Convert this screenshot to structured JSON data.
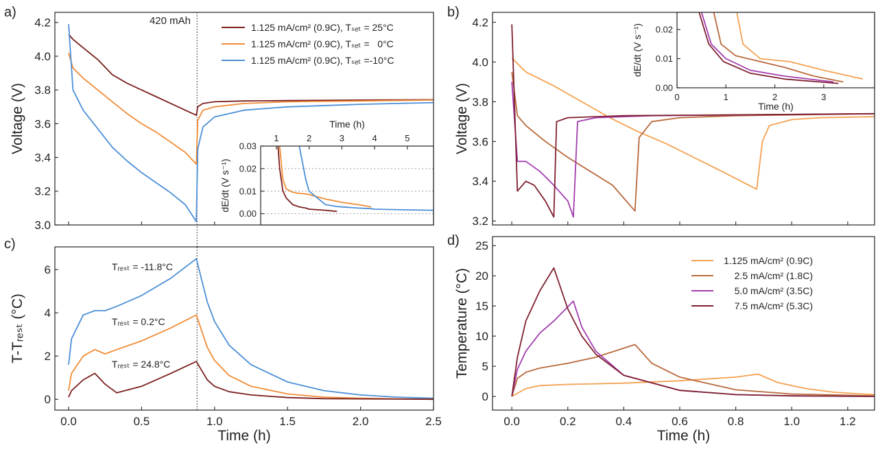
{
  "chart_data": [
    {
      "type": "line",
      "panel_label": "a)",
      "ylabel": "Voltage (V)",
      "xlim": [
        -0.094,
        2.5
      ],
      "ylim": [
        3.0,
        4.26
      ],
      "xticks": [
        0,
        0.5,
        1,
        1.5,
        2,
        2.5
      ],
      "show_xtick_labels": false,
      "yticks": [
        {
          "value": 3,
          "label": "3.0"
        },
        3.2,
        3.4,
        3.6,
        3.8,
        {
          "value": 4,
          "label": "4.0"
        },
        4.2
      ],
      "vline": 0.88,
      "annotations": [
        {
          "text": "420 mAh"
        }
      ],
      "legend": "upper right",
      "x": [
        0,
        0.03,
        0.1,
        0.2,
        0.3,
        0.4,
        0.5,
        0.6,
        0.7,
        0.8,
        0.875,
        0.885,
        0.92,
        1.0,
        1.2,
        1.5,
        2.0,
        2.5
      ],
      "series": [
        {
          "name": "1.125 mA/cm² (0.9C), Tₛₑₜ = 25°C",
          "color": "#7a1e1e",
          "values": [
            4.13,
            4.1,
            4.05,
            3.98,
            3.89,
            3.84,
            3.8,
            3.76,
            3.72,
            3.68,
            3.65,
            3.7,
            3.72,
            3.73,
            3.735,
            3.737,
            3.74,
            3.742
          ]
        },
        {
          "name": "1.125 mA/cm² (0.9C), Tₛₑₜ =   0°C",
          "color": "#f08c36",
          "values": [
            4.02,
            3.93,
            3.87,
            3.8,
            3.73,
            3.66,
            3.6,
            3.55,
            3.49,
            3.43,
            3.36,
            3.62,
            3.68,
            3.7,
            3.72,
            3.73,
            3.735,
            3.74
          ]
        },
        {
          "name": "1.125 mA/cm² (0.9C), Tₛₑₜ =-10°C",
          "color": "#4b8fd6",
          "values": [
            4.19,
            3.8,
            3.68,
            3.57,
            3.46,
            3.38,
            3.31,
            3.25,
            3.19,
            3.12,
            3.02,
            3.45,
            3.58,
            3.64,
            3.68,
            3.7,
            3.715,
            3.725
          ]
        }
      ]
    },
    {
      "type": "line",
      "xlabel": "Time (h)",
      "ylabel": "dE/dt (V s⁻¹)",
      "xaxis_position": "top",
      "grid": true,
      "xlim": [
        0.52,
        5.8
      ],
      "ylim": [
        -0.005,
        0.03
      ],
      "xticks": [
        1,
        2,
        3,
        4,
        5
      ],
      "yticks": [
        {
          "value": 0,
          "label": "0.00"
        },
        0.01,
        0.02,
        0.03
      ],
      "x": [
        1.05,
        1.1,
        1.2,
        1.3,
        1.5,
        1.7,
        1.9,
        2.0,
        2.5,
        2.85,
        3.0,
        3.5,
        3.9,
        4.0,
        5.0,
        5.8
      ],
      "series": [
        {
          "color": "#7a1e1e",
          "values": [
            0.03,
            0.02,
            0.01,
            0.007,
            0.004,
            0.003,
            0.0025,
            0.002,
            0.0015,
            0.001,
            null,
            null,
            null,
            null,
            null,
            null
          ]
        },
        {
          "color": "#f08c36",
          "values": [
            null,
            0.03,
            0.015,
            0.011,
            0.0095,
            0.009,
            0.0088,
            0.0085,
            0.0065,
            0.0055,
            0.005,
            0.004,
            0.003,
            null,
            null,
            null
          ]
        },
        {
          "color": "#4b8fd6",
          "values": [
            null,
            null,
            null,
            null,
            null,
            0.03,
            0.015,
            0.01,
            0.004,
            0.0032,
            0.003,
            0.0025,
            0.0022,
            0.002,
            0.0017,
            0.0015
          ]
        }
      ]
    },
    {
      "type": "line",
      "panel_label": "b)",
      "ylabel": "Voltage (V)",
      "xlim": [
        -0.069,
        1.296
      ],
      "ylim": [
        3.18,
        4.25
      ],
      "xticks": [
        0,
        0.2,
        0.4,
        0.6,
        0.8,
        1,
        1.2
      ],
      "show_xtick_labels": false,
      "yticks": [
        3.2,
        3.4,
        3.6,
        3.8,
        {
          "value": 4,
          "label": "4.0"
        },
        4.2
      ],
      "series": [
        {
          "color": "#f4a04f",
          "x": [
            0,
            0.05,
            0.15,
            0.25,
            0.35,
            0.45,
            0.55,
            0.65,
            0.75,
            0.875,
            0.895,
            0.92,
            1.0,
            1.1,
            1.296
          ],
          "values": [
            4.02,
            3.95,
            3.88,
            3.8,
            3.72,
            3.65,
            3.59,
            3.52,
            3.45,
            3.36,
            3.6,
            3.68,
            3.71,
            3.72,
            3.725
          ]
        },
        {
          "color": "#b8683a",
          "x": [
            0,
            0.02,
            0.05,
            0.12,
            0.2,
            0.28,
            0.36,
            0.44,
            0.455,
            0.5,
            0.6,
            0.8,
            1.296
          ],
          "values": [
            3.95,
            3.73,
            3.68,
            3.6,
            3.52,
            3.45,
            3.38,
            3.25,
            3.62,
            3.7,
            3.72,
            3.73,
            3.74
          ]
        },
        {
          "color": "#a33cae",
          "x": [
            0,
            0.02,
            0.05,
            0.1,
            0.15,
            0.2,
            0.22,
            0.235,
            0.3,
            0.5,
            1.296
          ],
          "values": [
            3.9,
            3.5,
            3.5,
            3.45,
            3.38,
            3.3,
            3.22,
            3.7,
            3.72,
            3.73,
            3.74
          ]
        },
        {
          "color": "#7e1f2e",
          "x": [
            0,
            0.02,
            0.05,
            0.08,
            0.12,
            0.15,
            0.16,
            0.2,
            0.4,
            1.296
          ],
          "values": [
            4.19,
            3.35,
            3.4,
            3.38,
            3.3,
            3.22,
            3.7,
            3.72,
            3.73,
            3.74
          ]
        }
      ]
    },
    {
      "type": "line",
      "xlabel": "Time (h)",
      "ylabel": "dE/dt (V s⁻¹)",
      "xlim": [
        0,
        4.04
      ],
      "ylim": [
        0,
        0.0259
      ],
      "xticks": [
        0,
        1,
        2,
        3
      ],
      "yticks": [
        {
          "value": 0,
          "label": "0.00"
        },
        0.01,
        0.02
      ],
      "series": [
        {
          "color": "#f4a04f",
          "x": [
            1.2,
            1.22,
            1.35,
            1.7,
            2.3,
            3.0,
            3.8
          ],
          "values": [
            0.03,
            0.026,
            0.015,
            0.01,
            0.009,
            0.006,
            0.003
          ]
        },
        {
          "color": "#b8683a",
          "x": [
            0.7,
            0.75,
            0.9,
            1.2,
            1.7,
            2.2,
            2.8,
            3.4
          ],
          "values": [
            0.03,
            0.026,
            0.015,
            0.011,
            0.009,
            0.007,
            0.004,
            0.002
          ]
        },
        {
          "color": "#a33cae",
          "x": [
            0.45,
            0.5,
            0.7,
            1.0,
            1.5,
            2.2,
            3.2
          ],
          "values": [
            0.03,
            0.026,
            0.015,
            0.01,
            0.006,
            0.004,
            0.002
          ]
        },
        {
          "color": "#7e1f2e",
          "x": [
            0.4,
            0.45,
            0.65,
            0.95,
            1.5,
            2.2,
            3.3
          ],
          "values": [
            0.03,
            0.026,
            0.015,
            0.009,
            0.005,
            0.003,
            0.0015
          ]
        }
      ]
    },
    {
      "type": "line",
      "panel_label": "c)",
      "xlabel": "Time (h)",
      "ylabel": "T-Tᵣₑₛₜ (°C)",
      "xlim": [
        -0.094,
        2.5
      ],
      "ylim": [
        -0.5,
        7.05
      ],
      "xticks": [
        {
          "value": 0,
          "label": "0.0"
        },
        0.5,
        {
          "value": 1,
          "label": "1.0"
        },
        1.5,
        {
          "value": 2,
          "label": "2.0"
        },
        2.5
      ],
      "yticks": [
        0,
        2,
        4,
        6
      ],
      "vline": 0.88,
      "annotations": [
        {
          "text": "Tᵣₑₛₜ = -11.8°C"
        },
        {
          "text": "Tᵣₑₛₜ = 0.2°C"
        },
        {
          "text": "Tᵣₑₛₜ = 24.8°C"
        }
      ],
      "x": [
        0,
        0.02,
        0.1,
        0.18,
        0.25,
        0.33,
        0.5,
        0.7,
        0.875,
        0.95,
        1.0,
        1.1,
        1.25,
        1.5,
        1.75,
        2.0,
        2.25,
        2.5
      ],
      "series": [
        {
          "color": "#4b8fd6",
          "values": [
            1.6,
            2.8,
            3.9,
            4.1,
            4.1,
            4.3,
            4.8,
            5.6,
            6.5,
            4.5,
            3.6,
            2.5,
            1.6,
            0.8,
            0.4,
            0.2,
            0.1,
            0.05
          ]
        },
        {
          "color": "#f08c36",
          "values": [
            0.4,
            1.2,
            2.0,
            2.3,
            2.1,
            2.3,
            2.7,
            3.3,
            3.9,
            2.4,
            1.8,
            1.1,
            0.6,
            0.25,
            0.1,
            0.05,
            0.02,
            0.0
          ]
        },
        {
          "color": "#7a1e1e",
          "values": [
            0.1,
            0.4,
            0.9,
            1.2,
            0.7,
            0.3,
            0.6,
            1.2,
            1.75,
            0.9,
            0.6,
            0.35,
            0.2,
            0.08,
            0.03,
            0.02,
            0.01,
            0.0
          ]
        }
      ]
    },
    {
      "type": "line",
      "panel_label": "d)",
      "xlabel": "Time (h)",
      "ylabel": "Temperature (°C)",
      "legend": "upper right",
      "xlim": [
        -0.069,
        1.296
      ],
      "ylim": [
        -2.27,
        26.5
      ],
      "xticks": [
        {
          "value": 0,
          "label": "0.0"
        },
        0.2,
        0.4,
        0.6,
        0.8,
        {
          "value": 1,
          "label": "1.0"
        },
        1.2
      ],
      "yticks": [
        0,
        5,
        10,
        15,
        20,
        25
      ],
      "series": [
        {
          "name": "1.125 mA/cm² (0.9C)",
          "color": "#f4a04f",
          "x": [
            0,
            0.05,
            0.1,
            0.2,
            0.4,
            0.6,
            0.8,
            0.88,
            0.95,
            1.05,
            1.15,
            1.25,
            1.296
          ],
          "values": [
            0,
            1.3,
            1.8,
            2.0,
            2.2,
            2.6,
            3.2,
            3.7,
            2.3,
            1.3,
            0.7,
            0.4,
            0.3
          ]
        },
        {
          "name": "2.5 mA/cm² (1.8C)",
          "color": "#b8683a",
          "x": [
            0,
            0.02,
            0.05,
            0.1,
            0.2,
            0.3,
            0.44,
            0.5,
            0.6,
            0.8,
            1.0,
            1.296
          ],
          "values": [
            0,
            3.0,
            4.0,
            4.7,
            5.5,
            6.5,
            8.6,
            5.5,
            3.2,
            1.1,
            0.4,
            0.1
          ]
        },
        {
          "name": "5.0 mA/cm² (3.5C)",
          "color": "#a33cae",
          "x": [
            0,
            0.02,
            0.05,
            0.1,
            0.15,
            0.22,
            0.25,
            0.3,
            0.4,
            0.6,
            0.8,
            1.0,
            1.296
          ],
          "values": [
            0,
            4.5,
            7.5,
            10.5,
            12.5,
            15.8,
            11.5,
            7.5,
            3.5,
            1.0,
            0.3,
            0.1,
            0.0
          ]
        },
        {
          "name": "7.5 mA/cm² (5.3C)",
          "color": "#7e1f2e",
          "x": [
            0,
            0.02,
            0.05,
            0.1,
            0.15,
            0.2,
            0.25,
            0.3,
            0.4,
            0.6,
            0.8,
            1.0,
            1.296
          ],
          "values": [
            0,
            6.5,
            12.5,
            17.5,
            21.3,
            14.5,
            10,
            7,
            3.5,
            1.0,
            0.3,
            0.1,
            0
          ]
        }
      ]
    }
  ]
}
